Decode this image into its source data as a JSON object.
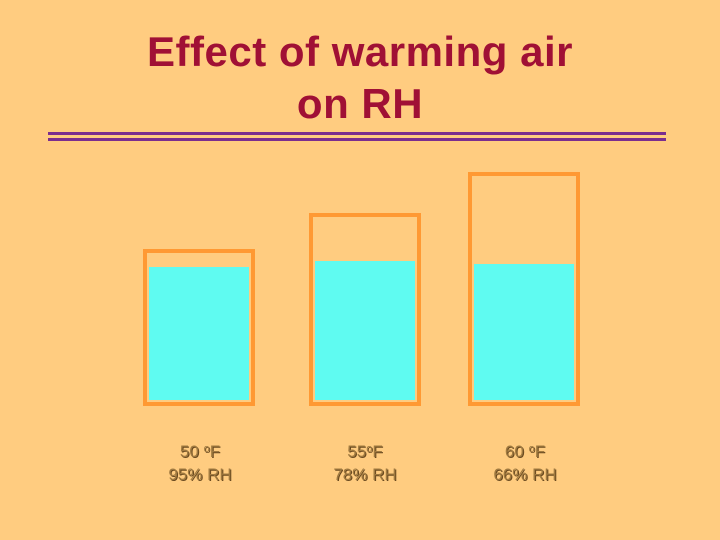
{
  "title": {
    "line1": "Effect of warming air",
    "line2": "on RH"
  },
  "colors": {
    "background": "#ffcc80",
    "title": "#a01035",
    "rule": "#7b2d8e",
    "container_border": "#ff9933",
    "water_fill": "#5ffbf1"
  },
  "chart_data": {
    "type": "bar",
    "categories": [
      "50 oF",
      "55oF",
      "60 oF"
    ],
    "series": [
      {
        "values": [
          95,
          78,
          66
        ]
      }
    ],
    "title": "Effect of warming air on RH",
    "xlabel": "",
    "ylabel": ""
  },
  "containers": [
    {
      "temp_num": "50 ",
      "temp_deg": "o",
      "temp_unit": "F",
      "rh": "95% RH"
    },
    {
      "temp_num": "55",
      "temp_deg": "o",
      "temp_unit": "F",
      "rh": "78% RH"
    },
    {
      "temp_num": "60 ",
      "temp_deg": "o",
      "temp_unit": "F",
      "rh": "66% RH"
    }
  ]
}
